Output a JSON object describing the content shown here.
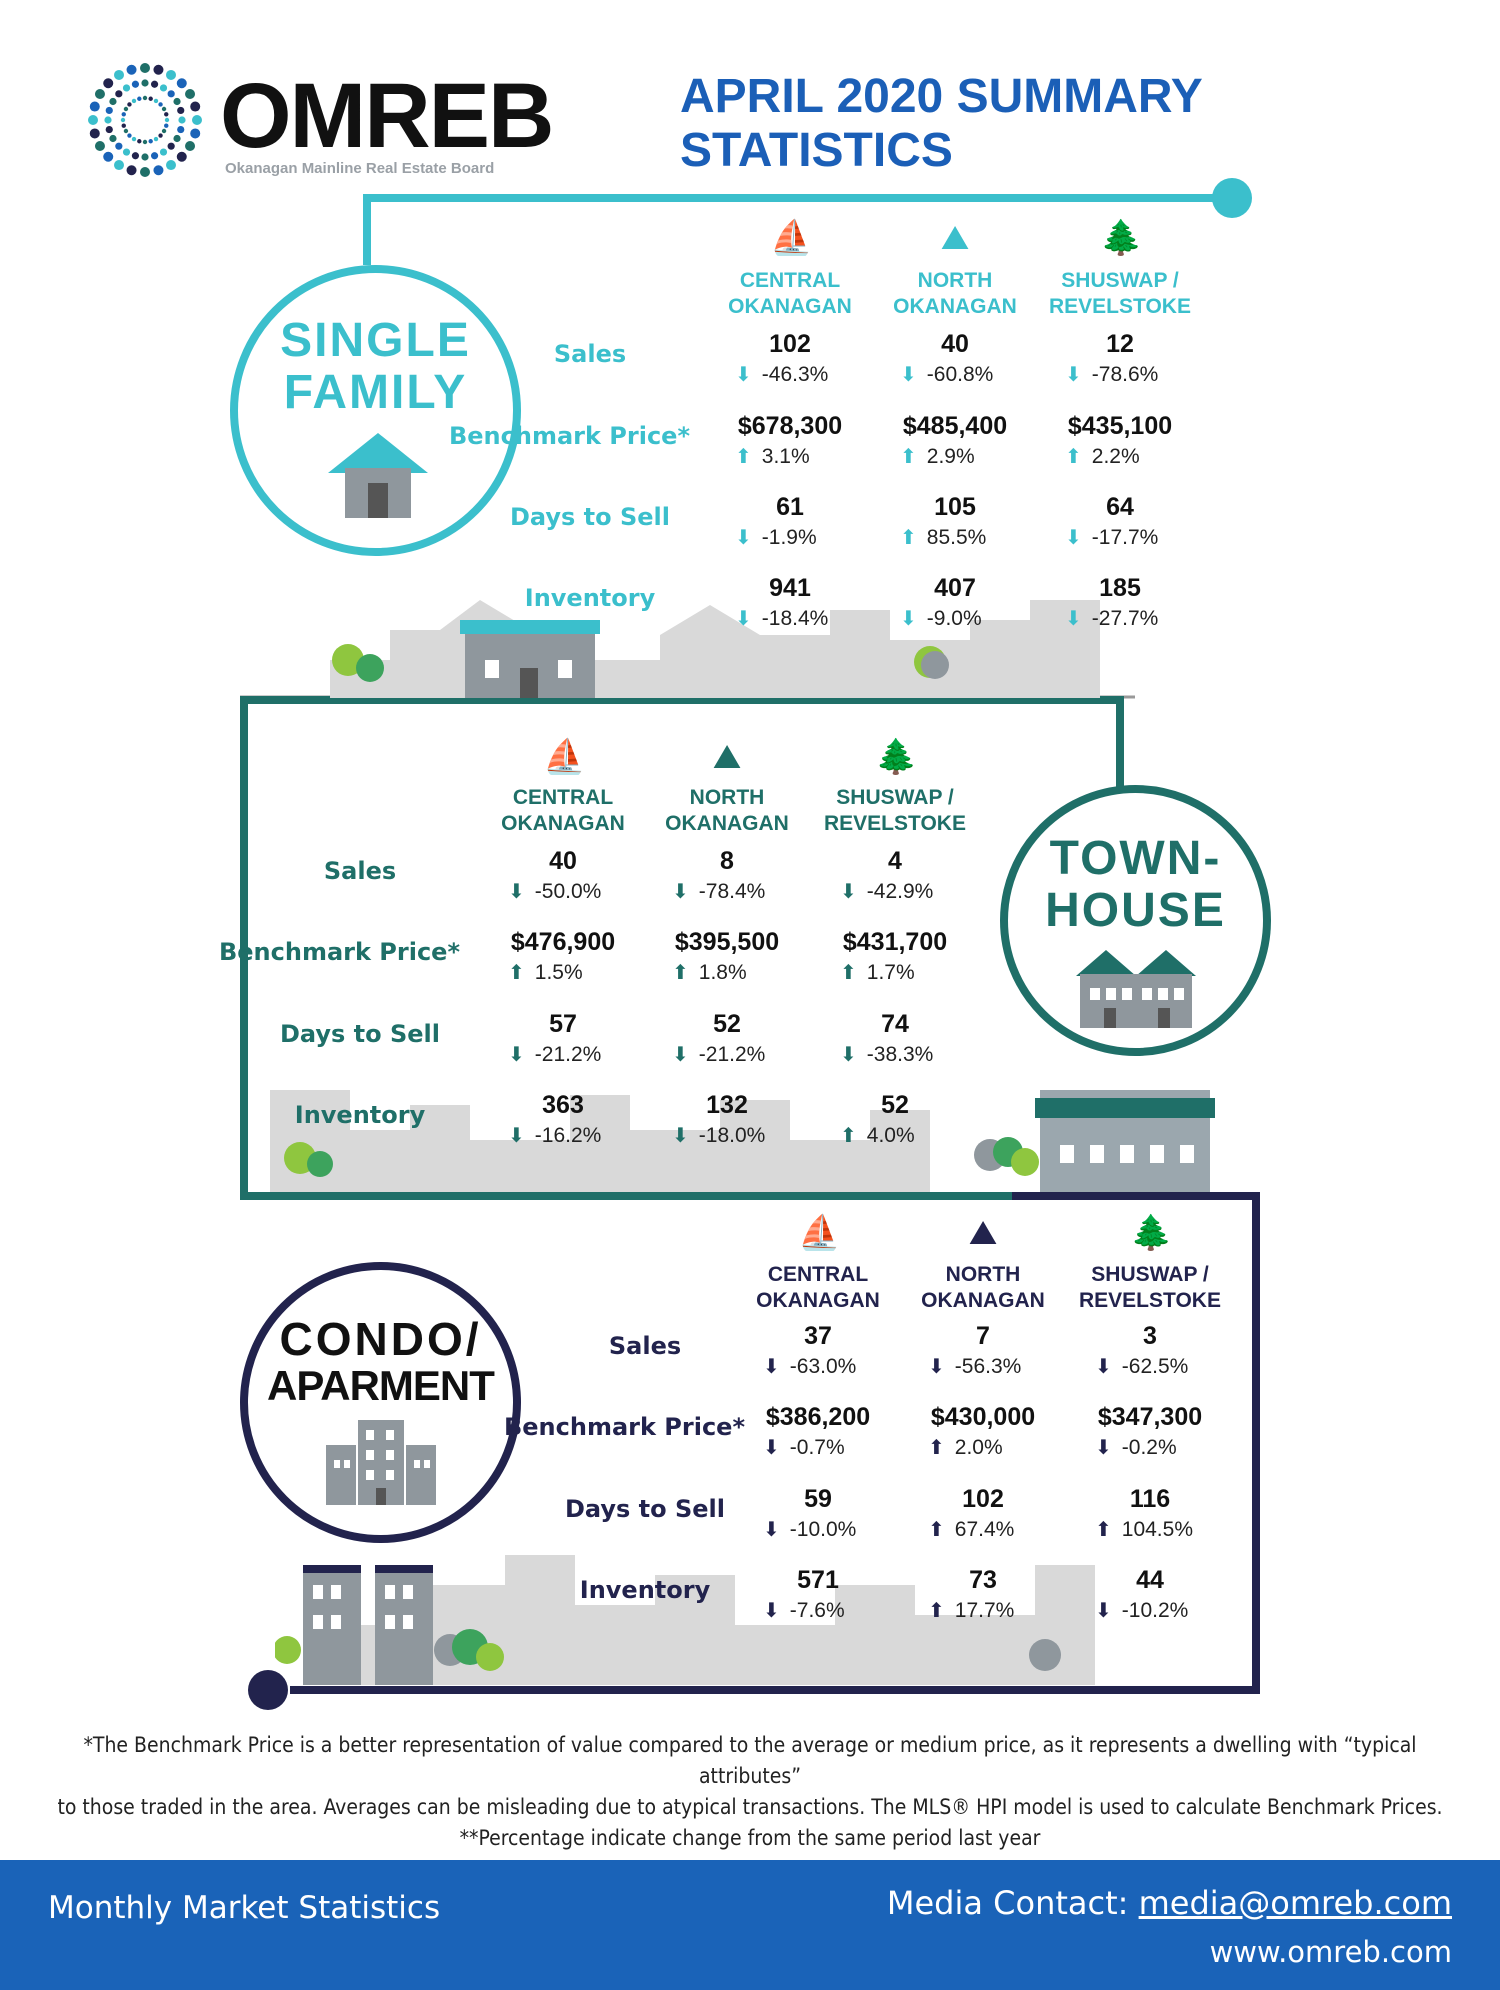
{
  "header": {
    "brand": "OMREB",
    "brand_subtitle": "Okanagan Mainline Real Estate Board",
    "title_line1": "APRIL 2020 SUMMARY",
    "title_line2": "STATISTICS"
  },
  "colors": {
    "single": "#3bbfcc",
    "town": "#1f6f68",
    "condo": "#22234d",
    "up": "#3bbfcc",
    "footer": "#1a63b8"
  },
  "regions": [
    {
      "line1": "CENTRAL",
      "line2": "OKANAGAN",
      "icon": "sailboat-icon"
    },
    {
      "line1": "NORTH",
      "line2": "OKANAGAN",
      "icon": "mountain-lake-icon"
    },
    {
      "line1": "SHUSWAP /",
      "line2": "REVELSTOKE",
      "icon": "pine-trees-icon"
    }
  ],
  "labels": {
    "sales": "Sales",
    "benchmark": "Benchmark Price*",
    "days": "Days to Sell",
    "inventory": "Inventory"
  },
  "single_family": {
    "title_line1": "SINGLE",
    "title_line2": "FAMILY",
    "rows": [
      [
        {
          "v": "102",
          "c": "-46.3%",
          "d": "down"
        },
        {
          "v": "40",
          "c": "-60.8%",
          "d": "down"
        },
        {
          "v": "12",
          "c": "-78.6%",
          "d": "down"
        }
      ],
      [
        {
          "v": "$678,300",
          "c": "3.1%",
          "d": "up"
        },
        {
          "v": "$485,400",
          "c": "2.9%",
          "d": "up"
        },
        {
          "v": "$435,100",
          "c": "2.2%",
          "d": "up"
        }
      ],
      [
        {
          "v": "61",
          "c": "-1.9%",
          "d": "down"
        },
        {
          "v": "105",
          "c": "85.5%",
          "d": "up"
        },
        {
          "v": "64",
          "c": "-17.7%",
          "d": "down"
        }
      ],
      [
        {
          "v": "941",
          "c": "-18.4%",
          "d": "down"
        },
        {
          "v": "407",
          "c": "-9.0%",
          "d": "down"
        },
        {
          "v": "185",
          "c": "-27.7%",
          "d": "down"
        }
      ]
    ]
  },
  "townhouse": {
    "title_line1": "TOWN-",
    "title_line2": "HOUSE",
    "rows": [
      [
        {
          "v": "40",
          "c": "-50.0%",
          "d": "down"
        },
        {
          "v": "8",
          "c": "-78.4%",
          "d": "down"
        },
        {
          "v": "4",
          "c": "-42.9%",
          "d": "down"
        }
      ],
      [
        {
          "v": "$476,900",
          "c": "1.5%",
          "d": "up"
        },
        {
          "v": "$395,500",
          "c": "1.8%",
          "d": "up"
        },
        {
          "v": "$431,700",
          "c": "1.7%",
          "d": "up"
        }
      ],
      [
        {
          "v": "57",
          "c": "-21.2%",
          "d": "down"
        },
        {
          "v": "52",
          "c": "-21.2%",
          "d": "down"
        },
        {
          "v": "74",
          "c": "-38.3%",
          "d": "down"
        }
      ],
      [
        {
          "v": "363",
          "c": "-16.2%",
          "d": "down"
        },
        {
          "v": "132",
          "c": "-18.0%",
          "d": "down"
        },
        {
          "v": "52",
          "c": "4.0%",
          "d": "up"
        }
      ]
    ]
  },
  "condo": {
    "title_line1": "CONDO/",
    "title_line2": "APARMENT",
    "rows": [
      [
        {
          "v": "37",
          "c": "-63.0%",
          "d": "down"
        },
        {
          "v": "7",
          "c": "-56.3%",
          "d": "down"
        },
        {
          "v": "3",
          "c": "-62.5%",
          "d": "down"
        }
      ],
      [
        {
          "v": "$386,200",
          "c": "-0.7%",
          "d": "down"
        },
        {
          "v": "$430,000",
          "c": "2.0%",
          "d": "up"
        },
        {
          "v": "$347,300",
          "c": "-0.2%",
          "d": "down"
        }
      ],
      [
        {
          "v": "59",
          "c": "-10.0%",
          "d": "down"
        },
        {
          "v": "102",
          "c": "67.4%",
          "d": "up"
        },
        {
          "v": "116",
          "c": "104.5%",
          "d": "up"
        }
      ],
      [
        {
          "v": "571",
          "c": "-7.6%",
          "d": "down"
        },
        {
          "v": "73",
          "c": "17.7%",
          "d": "up"
        },
        {
          "v": "44",
          "c": "-10.2%",
          "d": "down"
        }
      ]
    ]
  },
  "footnote": {
    "line1": "*The Benchmark Price is a better representation of value compared to the average or medium price, as it represents a dwelling with “typical attributes”",
    "line2": "to those traded in the area. Averages can be misleading due to atypical transactions. The MLS® HPI model is used to calculate Benchmark Prices.",
    "line3": "**Percentage indicate change from the same period last year"
  },
  "footer": {
    "left": "Monthly Market Statistics",
    "contact_label": "Media Contact:",
    "contact_email": "media@omreb.com",
    "website": "www.omreb.com"
  }
}
